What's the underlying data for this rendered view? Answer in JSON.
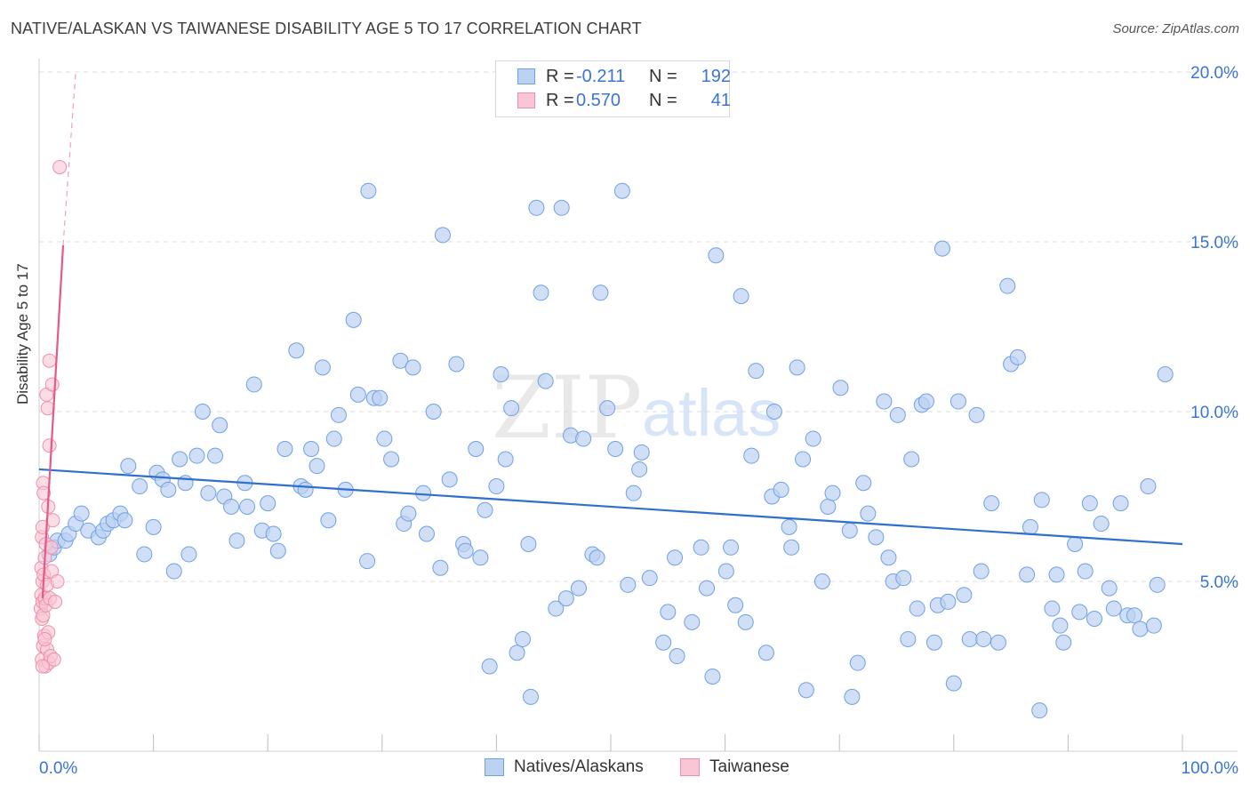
{
  "title": "NATIVE/ALASKAN VS TAIWANESE DISABILITY AGE 5 TO 17 CORRELATION CHART",
  "source": "Source: ZipAtlas.com",
  "watermark": {
    "zip": "ZIP",
    "atlas": "atlas"
  },
  "legend": {
    "r_label": "R =",
    "n_label": "N =",
    "rows": [
      {
        "name": "Natives/Alaskans",
        "r": "-0.211",
        "n": "192",
        "color": "#6fa1e6",
        "fill": "#bcd2f2"
      },
      {
        "name": "Taiwanese",
        "r": "0.570",
        "n": "41",
        "color": "#ef8fab",
        "fill": "#f8c6d4"
      }
    ]
  },
  "chart_data": {
    "type": "scatter",
    "title": "NATIVE/ALASKAN VS TAIWANESE DISABILITY AGE 5 TO 17 CORRELATION CHART",
    "xlabel": "",
    "ylabel": "Disability Age 5 to 17",
    "xlim": [
      0,
      100
    ],
    "ylim": [
      0,
      20.5
    ],
    "x_tick_labels": [
      "0.0%",
      "100.0%"
    ],
    "y_ticks": [
      5,
      10,
      15,
      20
    ],
    "y_tick_labels": [
      "5.0%",
      "10.0%",
      "15.0%",
      "20.0%"
    ],
    "grid": true,
    "legend_position": "bottom-center",
    "series": [
      {
        "name": "Natives/Alaskans",
        "color": "#6fa1e6",
        "trend": {
          "x": [
            0,
            100
          ],
          "y": [
            8.3,
            6.1
          ]
        },
        "points": [
          [
            0.9,
            5.8
          ],
          [
            1.3,
            6.0
          ],
          [
            1.6,
            6.2
          ],
          [
            2.3,
            6.2
          ],
          [
            2.6,
            6.4
          ],
          [
            3.2,
            6.7
          ],
          [
            3.7,
            7.0
          ],
          [
            4.3,
            6.5
          ],
          [
            5.2,
            6.3
          ],
          [
            5.6,
            6.5
          ],
          [
            6.0,
            6.7
          ],
          [
            6.5,
            6.8
          ],
          [
            7.1,
            7.0
          ],
          [
            7.5,
            6.8
          ],
          [
            7.8,
            8.4
          ],
          [
            8.8,
            7.8
          ],
          [
            9.2,
            5.8
          ],
          [
            10.0,
            6.6
          ],
          [
            10.3,
            8.2
          ],
          [
            10.8,
            8.0
          ],
          [
            11.3,
            7.7
          ],
          [
            11.8,
            5.3
          ],
          [
            12.3,
            8.6
          ],
          [
            12.8,
            7.9
          ],
          [
            13.1,
            5.8
          ],
          [
            13.8,
            8.7
          ],
          [
            14.3,
            10.0
          ],
          [
            14.8,
            7.6
          ],
          [
            15.4,
            8.7
          ],
          [
            15.8,
            9.6
          ],
          [
            16.2,
            7.5
          ],
          [
            16.8,
            7.2
          ],
          [
            17.3,
            6.2
          ],
          [
            18.0,
            7.9
          ],
          [
            18.2,
            7.2
          ],
          [
            18.8,
            10.8
          ],
          [
            19.5,
            6.5
          ],
          [
            20.0,
            7.3
          ],
          [
            20.5,
            6.4
          ],
          [
            20.9,
            5.9
          ],
          [
            21.5,
            8.9
          ],
          [
            22.5,
            11.8
          ],
          [
            22.9,
            7.8
          ],
          [
            23.3,
            7.7
          ],
          [
            23.8,
            8.9
          ],
          [
            24.3,
            8.4
          ],
          [
            24.8,
            11.3
          ],
          [
            25.3,
            6.8
          ],
          [
            25.8,
            9.2
          ],
          [
            26.2,
            9.9
          ],
          [
            26.8,
            7.7
          ],
          [
            27.5,
            12.7
          ],
          [
            27.9,
            10.5
          ],
          [
            28.7,
            5.6
          ],
          [
            28.8,
            16.5
          ],
          [
            29.3,
            10.4
          ],
          [
            29.8,
            10.4
          ],
          [
            30.2,
            9.2
          ],
          [
            30.8,
            8.6
          ],
          [
            31.6,
            11.5
          ],
          [
            31.9,
            6.7
          ],
          [
            32.3,
            7.0
          ],
          [
            32.7,
            11.3
          ],
          [
            33.6,
            7.6
          ],
          [
            33.9,
            6.4
          ],
          [
            34.5,
            10.0
          ],
          [
            35.1,
            5.4
          ],
          [
            35.3,
            15.2
          ],
          [
            35.9,
            8.0
          ],
          [
            36.5,
            11.4
          ],
          [
            37.1,
            6.1
          ],
          [
            37.3,
            5.9
          ],
          [
            38.2,
            8.9
          ],
          [
            38.6,
            5.7
          ],
          [
            39.0,
            7.1
          ],
          [
            39.4,
            2.5
          ],
          [
            40.0,
            7.8
          ],
          [
            40.4,
            11.1
          ],
          [
            40.8,
            8.6
          ],
          [
            41.3,
            10.1
          ],
          [
            41.8,
            2.9
          ],
          [
            42.3,
            3.3
          ],
          [
            42.8,
            6.1
          ],
          [
            43.0,
            1.6
          ],
          [
            43.5,
            16.0
          ],
          [
            43.9,
            13.5
          ],
          [
            44.3,
            10.9
          ],
          [
            45.2,
            4.2
          ],
          [
            45.7,
            16.0
          ],
          [
            46.1,
            4.5
          ],
          [
            46.5,
            9.3
          ],
          [
            47.2,
            4.8
          ],
          [
            47.6,
            9.2
          ],
          [
            48.4,
            5.8
          ],
          [
            48.8,
            5.7
          ],
          [
            49.1,
            13.5
          ],
          [
            49.7,
            10.1
          ],
          [
            50.4,
            8.9
          ],
          [
            51.0,
            16.5
          ],
          [
            51.5,
            4.9
          ],
          [
            52.0,
            7.6
          ],
          [
            52.5,
            8.3
          ],
          [
            52.7,
            8.8
          ],
          [
            53.4,
            5.1
          ],
          [
            54.6,
            3.2
          ],
          [
            55.0,
            4.1
          ],
          [
            55.6,
            5.7
          ],
          [
            55.8,
            2.8
          ],
          [
            57.1,
            3.8
          ],
          [
            57.9,
            6.0
          ],
          [
            58.4,
            4.8
          ],
          [
            58.9,
            2.2
          ],
          [
            59.2,
            14.6
          ],
          [
            60.1,
            5.3
          ],
          [
            60.5,
            6.0
          ],
          [
            60.9,
            4.3
          ],
          [
            61.4,
            13.4
          ],
          [
            61.8,
            3.8
          ],
          [
            62.3,
            8.7
          ],
          [
            62.7,
            11.2
          ],
          [
            63.6,
            2.9
          ],
          [
            64.1,
            7.5
          ],
          [
            64.3,
            10.0
          ],
          [
            64.9,
            7.7
          ],
          [
            65.6,
            6.6
          ],
          [
            65.8,
            6.0
          ],
          [
            66.3,
            11.3
          ],
          [
            66.8,
            8.6
          ],
          [
            67.1,
            1.8
          ],
          [
            67.7,
            9.2
          ],
          [
            68.5,
            5.0
          ],
          [
            69.0,
            7.2
          ],
          [
            69.4,
            7.6
          ],
          [
            70.1,
            10.7
          ],
          [
            70.9,
            6.5
          ],
          [
            71.1,
            1.6
          ],
          [
            71.6,
            2.6
          ],
          [
            72.1,
            7.9
          ],
          [
            72.5,
            7.0
          ],
          [
            73.2,
            6.3
          ],
          [
            73.9,
            10.3
          ],
          [
            74.3,
            5.7
          ],
          [
            74.7,
            5.0
          ],
          [
            75.1,
            9.9
          ],
          [
            75.6,
            5.1
          ],
          [
            76.0,
            3.3
          ],
          [
            76.3,
            8.6
          ],
          [
            76.8,
            4.2
          ],
          [
            77.2,
            10.2
          ],
          [
            77.6,
            10.3
          ],
          [
            78.3,
            3.2
          ],
          [
            78.6,
            4.3
          ],
          [
            79.0,
            14.8
          ],
          [
            79.5,
            4.4
          ],
          [
            80.0,
            2.0
          ],
          [
            80.4,
            10.3
          ],
          [
            80.9,
            4.6
          ],
          [
            81.4,
            3.3
          ],
          [
            82.0,
            9.9
          ],
          [
            82.4,
            5.3
          ],
          [
            82.6,
            3.3
          ],
          [
            83.3,
            7.3
          ],
          [
            83.9,
            3.2
          ],
          [
            84.7,
            13.7
          ],
          [
            85.0,
            11.4
          ],
          [
            85.6,
            11.6
          ],
          [
            86.4,
            5.2
          ],
          [
            86.7,
            6.6
          ],
          [
            87.5,
            1.2
          ],
          [
            87.7,
            7.4
          ],
          [
            88.6,
            4.2
          ],
          [
            89.0,
            5.2
          ],
          [
            89.3,
            3.7
          ],
          [
            89.6,
            3.2
          ],
          [
            90.6,
            6.1
          ],
          [
            91.0,
            4.1
          ],
          [
            91.5,
            5.3
          ],
          [
            91.9,
            7.3
          ],
          [
            92.3,
            3.9
          ],
          [
            92.9,
            6.7
          ],
          [
            93.6,
            4.8
          ],
          [
            94.0,
            4.2
          ],
          [
            94.6,
            7.3
          ],
          [
            95.2,
            4.0
          ],
          [
            95.8,
            4.0
          ],
          [
            96.3,
            3.6
          ],
          [
            97.0,
            7.8
          ],
          [
            97.5,
            3.7
          ],
          [
            97.8,
            4.9
          ],
          [
            98.5,
            11.1
          ]
        ]
      },
      {
        "name": "Taiwanese",
        "color": "#ef8fab",
        "trend": {
          "x": [
            0.3,
            2.1
          ],
          "y": [
            4.5,
            14.9
          ]
        },
        "trend_extension": {
          "x": [
            2.1,
            3.2
          ],
          "y": [
            14.9,
            20.0
          ]
        },
        "points": [
          [
            0.15,
            4.2
          ],
          [
            0.2,
            4.6
          ],
          [
            0.2,
            5.4
          ],
          [
            0.25,
            6.3
          ],
          [
            0.25,
            3.9
          ],
          [
            0.25,
            2.7
          ],
          [
            0.3,
            4.4
          ],
          [
            0.3,
            5.0
          ],
          [
            0.3,
            6.6
          ],
          [
            0.35,
            7.9
          ],
          [
            0.35,
            3.1
          ],
          [
            0.35,
            4.0
          ],
          [
            0.4,
            5.2
          ],
          [
            0.4,
            7.6
          ],
          [
            0.45,
            3.4
          ],
          [
            0.5,
            4.5
          ],
          [
            0.5,
            5.7
          ],
          [
            0.55,
            2.5
          ],
          [
            0.6,
            4.3
          ],
          [
            0.6,
            6.1
          ],
          [
            0.65,
            10.5
          ],
          [
            0.7,
            3.0
          ],
          [
            0.7,
            4.9
          ],
          [
            0.75,
            10.1
          ],
          [
            0.8,
            3.5
          ],
          [
            0.8,
            7.2
          ],
          [
            0.85,
            2.6
          ],
          [
            0.9,
            9.0
          ],
          [
            0.9,
            11.5
          ],
          [
            0.95,
            4.5
          ],
          [
            1.0,
            2.8
          ],
          [
            1.05,
            6.0
          ],
          [
            1.1,
            5.3
          ],
          [
            1.15,
            10.8
          ],
          [
            1.2,
            6.8
          ],
          [
            1.3,
            2.7
          ],
          [
            1.4,
            4.4
          ],
          [
            1.6,
            5.0
          ],
          [
            1.8,
            17.2
          ],
          [
            0.3,
            2.5
          ],
          [
            0.5,
            3.3
          ]
        ]
      }
    ]
  }
}
